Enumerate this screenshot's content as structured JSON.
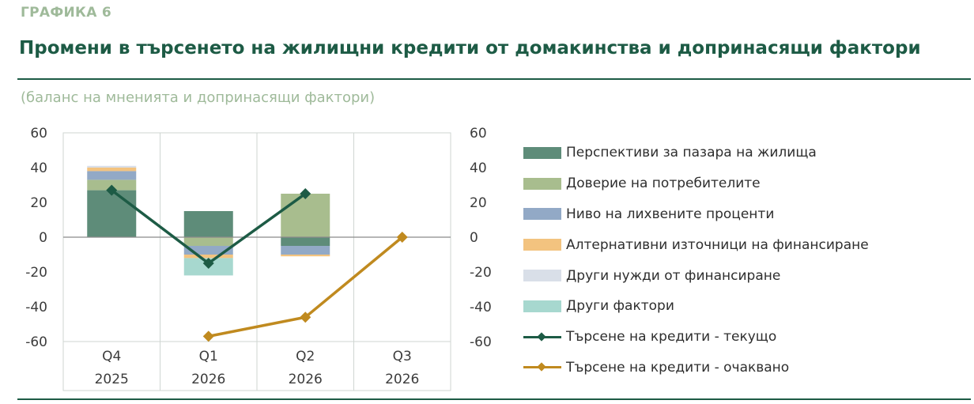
{
  "header": {
    "figure_label": "ГРАФИКА 6",
    "title": "Промени в търсенето на жилищни кредити от домакинства и допринасящи фактори",
    "subtitle": "(баланс на мненията и допринасящи фактори)"
  },
  "chart_data": {
    "type": "bar",
    "stacked": true,
    "ylim": [
      -60,
      60
    ],
    "yticks": [
      60,
      40,
      20,
      0,
      -20,
      -40,
      -60
    ],
    "secondary_yticks": [
      60,
      40,
      20,
      0,
      -20,
      -40,
      -60
    ],
    "grid": "vertical",
    "legend_position": "right",
    "categories": [
      {
        "quarter": "Q4",
        "year": "2025"
      },
      {
        "quarter": "Q1",
        "year": "2026"
      },
      {
        "quarter": "Q2",
        "year": "2026"
      },
      {
        "quarter": "Q3",
        "year": "2026"
      }
    ],
    "series": [
      {
        "name": "Перспективи за пазара на жилища",
        "kind": "bar",
        "color": "#5e8c79",
        "values": [
          27,
          15,
          -5,
          null
        ]
      },
      {
        "name": "Доверие на потребителите",
        "kind": "bar",
        "color": "#a8bd8e",
        "values": [
          6,
          -5,
          25,
          null
        ]
      },
      {
        "name": "Ниво на лихвените проценти",
        "kind": "bar",
        "color": "#92a9c6",
        "values": [
          5,
          -5,
          -5,
          null
        ]
      },
      {
        "name": "Алтернативни източници на финансиране",
        "kind": "bar",
        "color": "#f3c37f",
        "values": [
          2,
          -2,
          -1,
          null
        ]
      },
      {
        "name": "Други нужди от финансиране",
        "kind": "bar",
        "color": "#d9dfe8",
        "values": [
          1,
          0,
          0,
          null
        ]
      },
      {
        "name": "Други фактори",
        "kind": "bar",
        "color": "#a7d8cf",
        "values": [
          0,
          -10,
          0,
          null
        ]
      },
      {
        "name": "Търсене на кредити - текущо",
        "kind": "line",
        "color": "#1d5b45",
        "values": [
          27,
          -15,
          25,
          null
        ]
      },
      {
        "name": "Търсене на кредити - очаквано",
        "kind": "line",
        "color": "#c08a1f",
        "values": [
          null,
          -57,
          -46,
          0
        ]
      }
    ]
  }
}
